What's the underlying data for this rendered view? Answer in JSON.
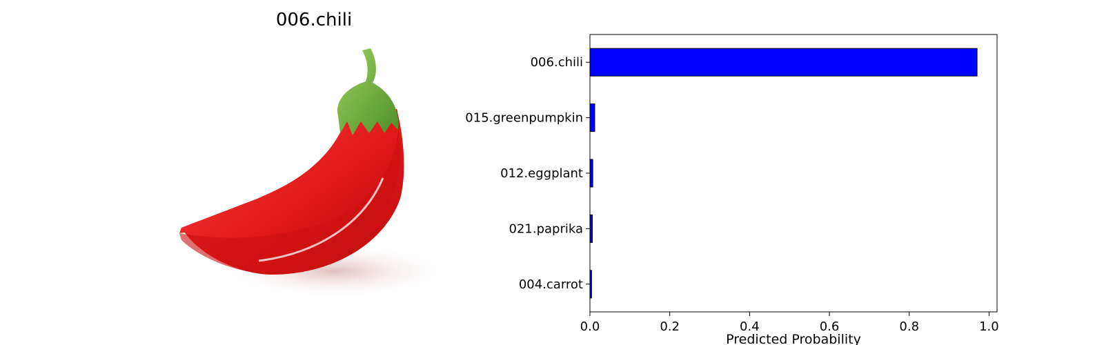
{
  "image_panel": {
    "title": "006.chili",
    "subject_icon": "chili-pepper-illustration"
  },
  "chart_data": {
    "type": "bar",
    "orientation": "horizontal",
    "categories": [
      "006.chili",
      "015.greenpumpkin",
      "012.eggplant",
      "021.paprika",
      "004.carrot"
    ],
    "values": [
      0.97,
      0.012,
      0.007,
      0.006,
      0.004
    ],
    "xlabel": "Predicted Probability",
    "ylabel": "",
    "xlim": [
      0,
      1.02
    ],
    "xticks": [
      "0.0",
      "0.2",
      "0.4",
      "0.6",
      "0.8",
      "1.0"
    ],
    "grid": false,
    "bar_color": "#0000ff",
    "bar_edge_color": "#000000"
  }
}
